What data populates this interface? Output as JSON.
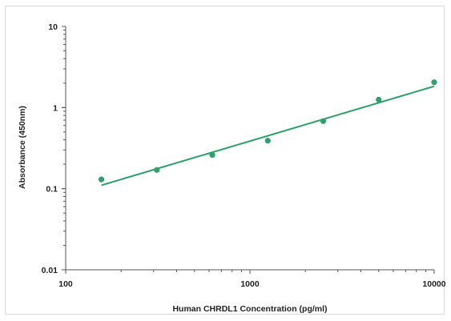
{
  "chart_data": {
    "type": "scatter",
    "xlabel": "Human CHRDL1 Concentration (pg/ml)",
    "ylabel": "Absorbance (450nm)",
    "x_scale": "log",
    "y_scale": "log",
    "xlim": [
      100,
      10000
    ],
    "ylim": [
      0.01,
      10
    ],
    "x_ticks": [
      "100",
      "1000",
      "10000"
    ],
    "y_ticks": [
      "0.01",
      "0.1",
      "1",
      "10"
    ],
    "grid": false,
    "point_color": "#2fa06a",
    "line_color": "#2fa06a",
    "series": [
      {
        "points": [
          {
            "x": 156.25,
            "y": 0.13
          },
          {
            "x": 312.5,
            "y": 0.17
          },
          {
            "x": 625,
            "y": 0.26
          },
          {
            "x": 1250,
            "y": 0.39
          },
          {
            "x": 2500,
            "y": 0.68
          },
          {
            "x": 5000,
            "y": 1.25
          },
          {
            "x": 10000,
            "y": 2.05
          }
        ]
      }
    ],
    "trendline": {
      "points": [
        {
          "x": 156.25,
          "y": 0.11
        },
        {
          "x": 10000,
          "y": 1.83
        }
      ]
    }
  }
}
